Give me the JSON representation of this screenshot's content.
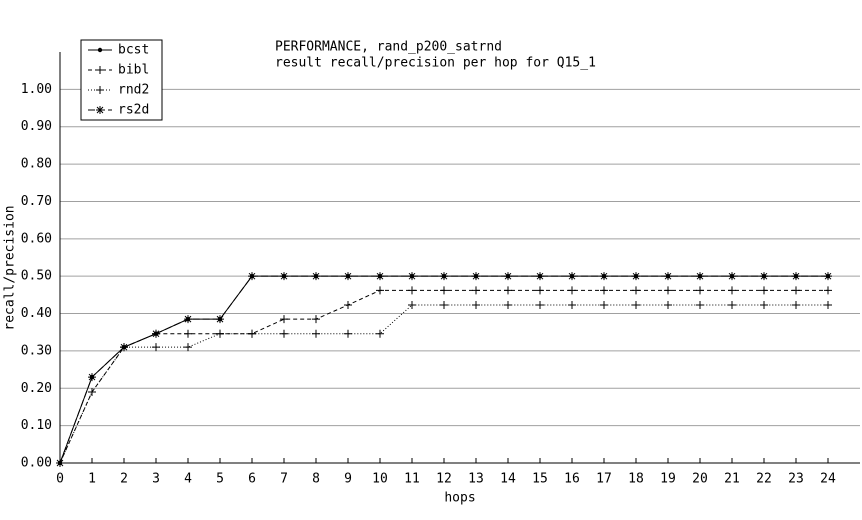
{
  "chart_data": {
    "type": "line",
    "title": "PERFORMANCE, rand_p200_satrnd",
    "subtitle": "result recall/precision per hop for Q15_1",
    "x_label": "hops",
    "y_label": "recall/precision",
    "x": [
      0,
      1,
      2,
      3,
      4,
      5,
      6,
      7,
      8,
      9,
      10,
      11,
      12,
      13,
      14,
      15,
      16,
      17,
      18,
      19,
      20,
      21,
      22,
      23,
      24
    ],
    "xlim": [
      0,
      25
    ],
    "xticks": [
      0,
      1,
      2,
      3,
      4,
      5,
      6,
      7,
      8,
      9,
      10,
      11,
      12,
      13,
      14,
      15,
      16,
      17,
      18,
      19,
      20,
      21,
      22,
      23,
      24
    ],
    "ylim": [
      0,
      1.1
    ],
    "yticks": [
      {
        "value": 0,
        "label": "0.00"
      },
      {
        "value": 0.1,
        "label": "0.10"
      },
      {
        "value": 0.2,
        "label": "0.20"
      },
      {
        "value": 0.3,
        "label": "0.30"
      },
      {
        "value": 0.4,
        "label": "0.40"
      },
      {
        "value": 0.5,
        "label": "0.50"
      },
      {
        "value": 0.6,
        "label": "0.60"
      },
      {
        "value": 0.7,
        "label": "0.70"
      },
      {
        "value": 0.8,
        "label": "0.80"
      },
      {
        "value": 0.9,
        "label": "0.90"
      },
      {
        "value": 1.0,
        "label": "1.00"
      }
    ],
    "grid": true,
    "legend": "top-left",
    "series": [
      {
        "name": "bcst",
        "color": "#000000",
        "dash": "solid",
        "marker": "dot",
        "values": [
          0,
          0.23,
          0.31,
          0.346,
          0.385,
          0.385,
          0.5,
          0.5,
          0.5,
          0.5,
          0.5,
          0.5,
          0.5,
          0.5,
          0.5,
          0.5,
          0.5,
          0.5,
          0.5,
          0.5,
          0.5,
          0.5,
          0.5,
          0.5,
          0.5
        ]
      },
      {
        "name": "bibl",
        "color": "#000000",
        "dash": "dashed",
        "marker": "plus",
        "values": [
          0,
          0.19,
          0.31,
          0.346,
          0.346,
          0.346,
          0.346,
          0.385,
          0.385,
          0.423,
          0.462,
          0.462,
          0.462,
          0.462,
          0.462,
          0.462,
          0.462,
          0.462,
          0.462,
          0.462,
          0.462,
          0.462,
          0.462,
          0.462,
          0.462
        ]
      },
      {
        "name": "rnd2",
        "color": "#000000",
        "dash": "dotted",
        "marker": "plus",
        "values": [
          0,
          0.19,
          0.31,
          0.31,
          0.31,
          0.346,
          0.346,
          0.346,
          0.346,
          0.346,
          0.346,
          0.423,
          0.423,
          0.423,
          0.423,
          0.423,
          0.423,
          0.423,
          0.423,
          0.423,
          0.423,
          0.423,
          0.423,
          0.423,
          0.423
        ]
      },
      {
        "name": "rs2d",
        "color": "#000000",
        "dash": "longdash",
        "marker": "star",
        "values": [
          0,
          0.23,
          0.31,
          0.346,
          0.385,
          0.385,
          0.5,
          0.5,
          0.5,
          0.5,
          0.5,
          0.5,
          0.5,
          0.5,
          0.5,
          0.5,
          0.5,
          0.5,
          0.5,
          0.5,
          0.5,
          0.5,
          0.5,
          0.5,
          0.5
        ]
      }
    ]
  }
}
